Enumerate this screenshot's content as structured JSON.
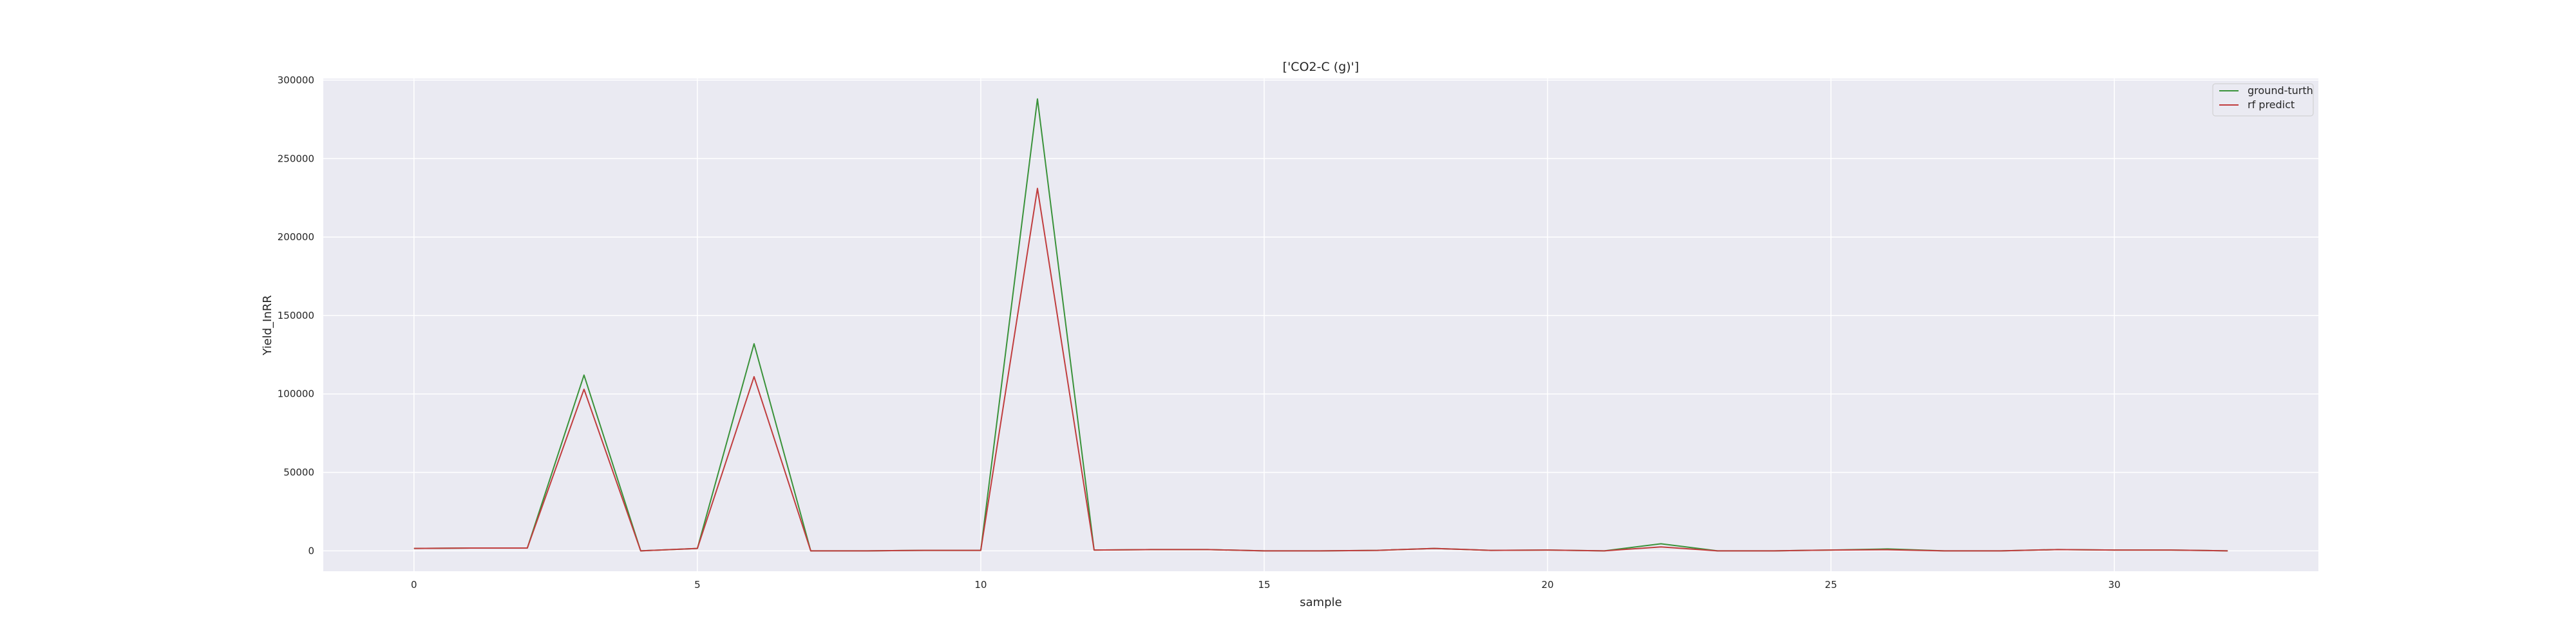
{
  "chart_data": {
    "type": "line",
    "title": "['CO2-C (g)']",
    "xlabel": "sample",
    "ylabel": "Yield_InRR",
    "x": [
      0,
      1,
      2,
      3,
      4,
      5,
      6,
      7,
      8,
      9,
      10,
      11,
      12,
      13,
      14,
      15,
      16,
      17,
      18,
      19,
      20,
      21,
      22,
      23,
      24,
      25,
      26,
      27,
      28,
      29,
      30,
      31,
      32
    ],
    "xlim": [
      -1.6,
      33.6
    ],
    "ylim": [
      -13000,
      301000
    ],
    "xticks": [
      0,
      5,
      10,
      15,
      20,
      25,
      30
    ],
    "xtick_labels": [
      "0",
      "5",
      "10",
      "15",
      "20",
      "25",
      "30"
    ],
    "yticks": [
      0,
      50000,
      100000,
      150000,
      200000,
      250000,
      300000
    ],
    "ytick_labels": [
      "0",
      "50000",
      "100000",
      "150000",
      "200000",
      "250000",
      "300000"
    ],
    "grid": true,
    "legend_position": "top-right",
    "series": [
      {
        "name": "ground-turth",
        "color": "#3a923a",
        "values": [
          1500,
          1800,
          1800,
          112000,
          0,
          1500,
          132000,
          0,
          0,
          300,
          300,
          288000,
          500,
          800,
          800,
          0,
          0,
          300,
          1500,
          300,
          500,
          0,
          4500,
          0,
          0,
          500,
          1200,
          0,
          0,
          800,
          500,
          500,
          0
        ]
      },
      {
        "name": "rf predict",
        "color": "#c03d3e",
        "values": [
          1500,
          1800,
          1800,
          103000,
          0,
          1500,
          111000,
          0,
          0,
          300,
          300,
          231000,
          500,
          800,
          800,
          0,
          0,
          300,
          1500,
          300,
          500,
          0,
          2500,
          0,
          0,
          500,
          700,
          0,
          0,
          800,
          500,
          500,
          0
        ]
      }
    ]
  }
}
